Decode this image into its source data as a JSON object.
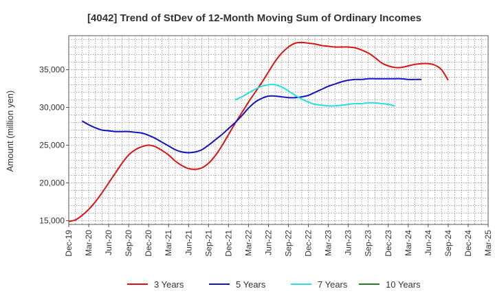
{
  "chart_data": {
    "type": "line",
    "title": "[4042]  Trend of StDev of 12-Month Moving Sum of Ordinary Incomes",
    "xlabel": "",
    "ylabel": "Amount (million yen)",
    "ylim": [
      14500,
      39500
    ],
    "y_ticks": [
      15000,
      20000,
      25000,
      30000,
      35000
    ],
    "y_tick_labels": [
      "15,000",
      "20,000",
      "25,000",
      "30,000",
      "35,000"
    ],
    "x_tick_labels": [
      "Dec-19",
      "Mar-20",
      "Jun-20",
      "Sep-20",
      "Dec-20",
      "Mar-21",
      "Jun-21",
      "Sep-21",
      "Dec-21",
      "Mar-22",
      "Jun-22",
      "Sep-22",
      "Dec-22",
      "Mar-23",
      "Jun-23",
      "Sep-23",
      "Dec-23",
      "Mar-24",
      "Jun-24",
      "Sep-24",
      "Dec-24",
      "Mar-25"
    ],
    "grid": true,
    "legend_position": "bottom",
    "series": [
      {
        "name": "3 Years",
        "color": "#e01010",
        "points": [
          [
            0,
            14900
          ],
          [
            1,
            15100
          ],
          [
            2,
            15700
          ],
          [
            3,
            16500
          ],
          [
            4,
            17500
          ],
          [
            5,
            18700
          ],
          [
            6,
            20000
          ],
          [
            7,
            21300
          ],
          [
            8,
            22600
          ],
          [
            9,
            23700
          ],
          [
            10,
            24400
          ],
          [
            11,
            24800
          ],
          [
            12,
            25000
          ],
          [
            13,
            24800
          ],
          [
            14,
            24300
          ],
          [
            15,
            23700
          ],
          [
            16,
            22900
          ],
          [
            17,
            22300
          ],
          [
            18,
            21900
          ],
          [
            19,
            21800
          ],
          [
            20,
            22000
          ],
          [
            21,
            22600
          ],
          [
            22,
            23600
          ],
          [
            23,
            24900
          ],
          [
            24,
            26400
          ],
          [
            25,
            27900
          ],
          [
            26,
            29300
          ],
          [
            27,
            30700
          ],
          [
            28,
            32000
          ],
          [
            29,
            33300
          ],
          [
            30,
            34700
          ],
          [
            31,
            36100
          ],
          [
            32,
            37200
          ],
          [
            33,
            38000
          ],
          [
            34,
            38500
          ],
          [
            35,
            38600
          ],
          [
            36,
            38500
          ],
          [
            37,
            38400
          ],
          [
            38,
            38200
          ],
          [
            39,
            38100
          ],
          [
            40,
            38000
          ],
          [
            41,
            38000
          ],
          [
            42,
            38000
          ],
          [
            43,
            37900
          ],
          [
            44,
            37600
          ],
          [
            45,
            37200
          ],
          [
            46,
            36600
          ],
          [
            47,
            35900
          ],
          [
            48,
            35500
          ],
          [
            49,
            35300
          ],
          [
            50,
            35300
          ],
          [
            51,
            35500
          ],
          [
            52,
            35700
          ],
          [
            53,
            35800
          ],
          [
            54,
            35800
          ],
          [
            55,
            35600
          ],
          [
            56,
            35000
          ],
          [
            57,
            33600
          ]
        ]
      },
      {
        "name": "5 Years",
        "color": "#1010c8",
        "points": [
          [
            2,
            28200
          ],
          [
            3,
            27700
          ],
          [
            4,
            27300
          ],
          [
            5,
            27000
          ],
          [
            6,
            26900
          ],
          [
            7,
            26800
          ],
          [
            8,
            26800
          ],
          [
            9,
            26800
          ],
          [
            10,
            26700
          ],
          [
            11,
            26600
          ],
          [
            12,
            26300
          ],
          [
            13,
            25900
          ],
          [
            14,
            25400
          ],
          [
            15,
            24900
          ],
          [
            16,
            24400
          ],
          [
            17,
            24100
          ],
          [
            18,
            24000
          ],
          [
            19,
            24100
          ],
          [
            20,
            24400
          ],
          [
            21,
            25000
          ],
          [
            22,
            25700
          ],
          [
            23,
            26400
          ],
          [
            24,
            27200
          ],
          [
            25,
            28000
          ],
          [
            26,
            28900
          ],
          [
            27,
            29900
          ],
          [
            28,
            30700
          ],
          [
            29,
            31200
          ],
          [
            30,
            31500
          ],
          [
            31,
            31500
          ],
          [
            32,
            31400
          ],
          [
            33,
            31300
          ],
          [
            34,
            31300
          ],
          [
            35,
            31400
          ],
          [
            36,
            31600
          ],
          [
            37,
            32000
          ],
          [
            38,
            32400
          ],
          [
            39,
            32800
          ],
          [
            40,
            33100
          ],
          [
            41,
            33400
          ],
          [
            42,
            33600
          ],
          [
            43,
            33700
          ],
          [
            44,
            33700
          ],
          [
            45,
            33800
          ],
          [
            46,
            33800
          ],
          [
            47,
            33800
          ],
          [
            48,
            33800
          ],
          [
            49,
            33800
          ],
          [
            50,
            33800
          ],
          [
            51,
            33700
          ],
          [
            52,
            33700
          ],
          [
            53,
            33700
          ]
        ]
      },
      {
        "name": "7 Years",
        "color": "#20e0e0",
        "points": [
          [
            25,
            31000
          ],
          [
            26,
            31400
          ],
          [
            27,
            31900
          ],
          [
            28,
            32400
          ],
          [
            29,
            32800
          ],
          [
            30,
            33000
          ],
          [
            31,
            33000
          ],
          [
            32,
            32700
          ],
          [
            33,
            32200
          ],
          [
            34,
            31600
          ],
          [
            35,
            31100
          ],
          [
            36,
            30700
          ],
          [
            37,
            30400
          ],
          [
            38,
            30300
          ],
          [
            39,
            30200
          ],
          [
            40,
            30200
          ],
          [
            41,
            30300
          ],
          [
            42,
            30400
          ],
          [
            43,
            30500
          ],
          [
            44,
            30500
          ],
          [
            45,
            30600
          ],
          [
            46,
            30600
          ],
          [
            47,
            30500
          ],
          [
            48,
            30400
          ],
          [
            49,
            30200
          ]
        ]
      },
      {
        "name": "10 Years",
        "color": "#208020",
        "points": []
      }
    ]
  }
}
